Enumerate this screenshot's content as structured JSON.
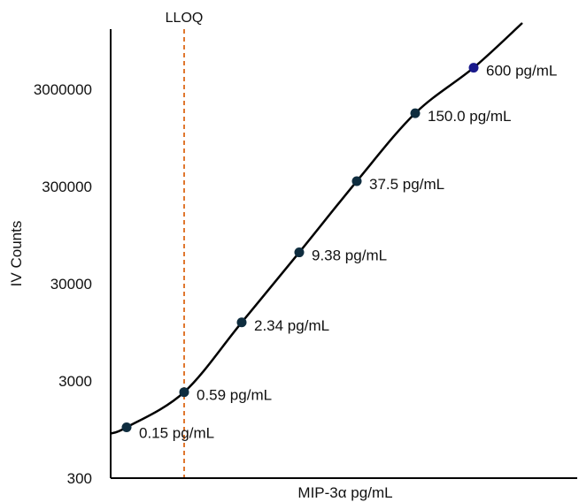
{
  "chart_data": {
    "type": "line",
    "title": "",
    "xlabel": "MIP-3α pg/mL",
    "ylabel": "IV Counts",
    "y_scale": "log",
    "ylim": [
      300,
      10000000
    ],
    "y_ticks": [
      "300",
      "3000",
      "30000",
      "300000",
      "3000000"
    ],
    "grid": false,
    "legend": "none",
    "line_color": "#000000",
    "point_color": "#0f2d3f",
    "highlight_point_color": "#1a1a8c",
    "reference_line": {
      "label": "LLOQ",
      "color": "#e0772e",
      "style": "dashed",
      "x_position_between": [
        "0.15 pg/mL",
        "2.34 pg/mL"
      ],
      "passes_through": "0.59 pg/mL"
    },
    "points": [
      {
        "label": "0.15 pg/mL",
        "y": 1000,
        "highlight": false
      },
      {
        "label": "0.59 pg/mL",
        "y": 2300,
        "highlight": false
      },
      {
        "label": "2.34 pg/mL",
        "y": 12000,
        "highlight": false
      },
      {
        "label": "9.38 pg/mL",
        "y": 63000,
        "highlight": false
      },
      {
        "label": "37.5 pg/mL",
        "y": 340000,
        "highlight": false
      },
      {
        "label": "150.0 pg/mL",
        "y": 1700000,
        "highlight": false
      },
      {
        "label": "600 pg/mL",
        "y": 5000000,
        "highlight": true
      }
    ]
  }
}
